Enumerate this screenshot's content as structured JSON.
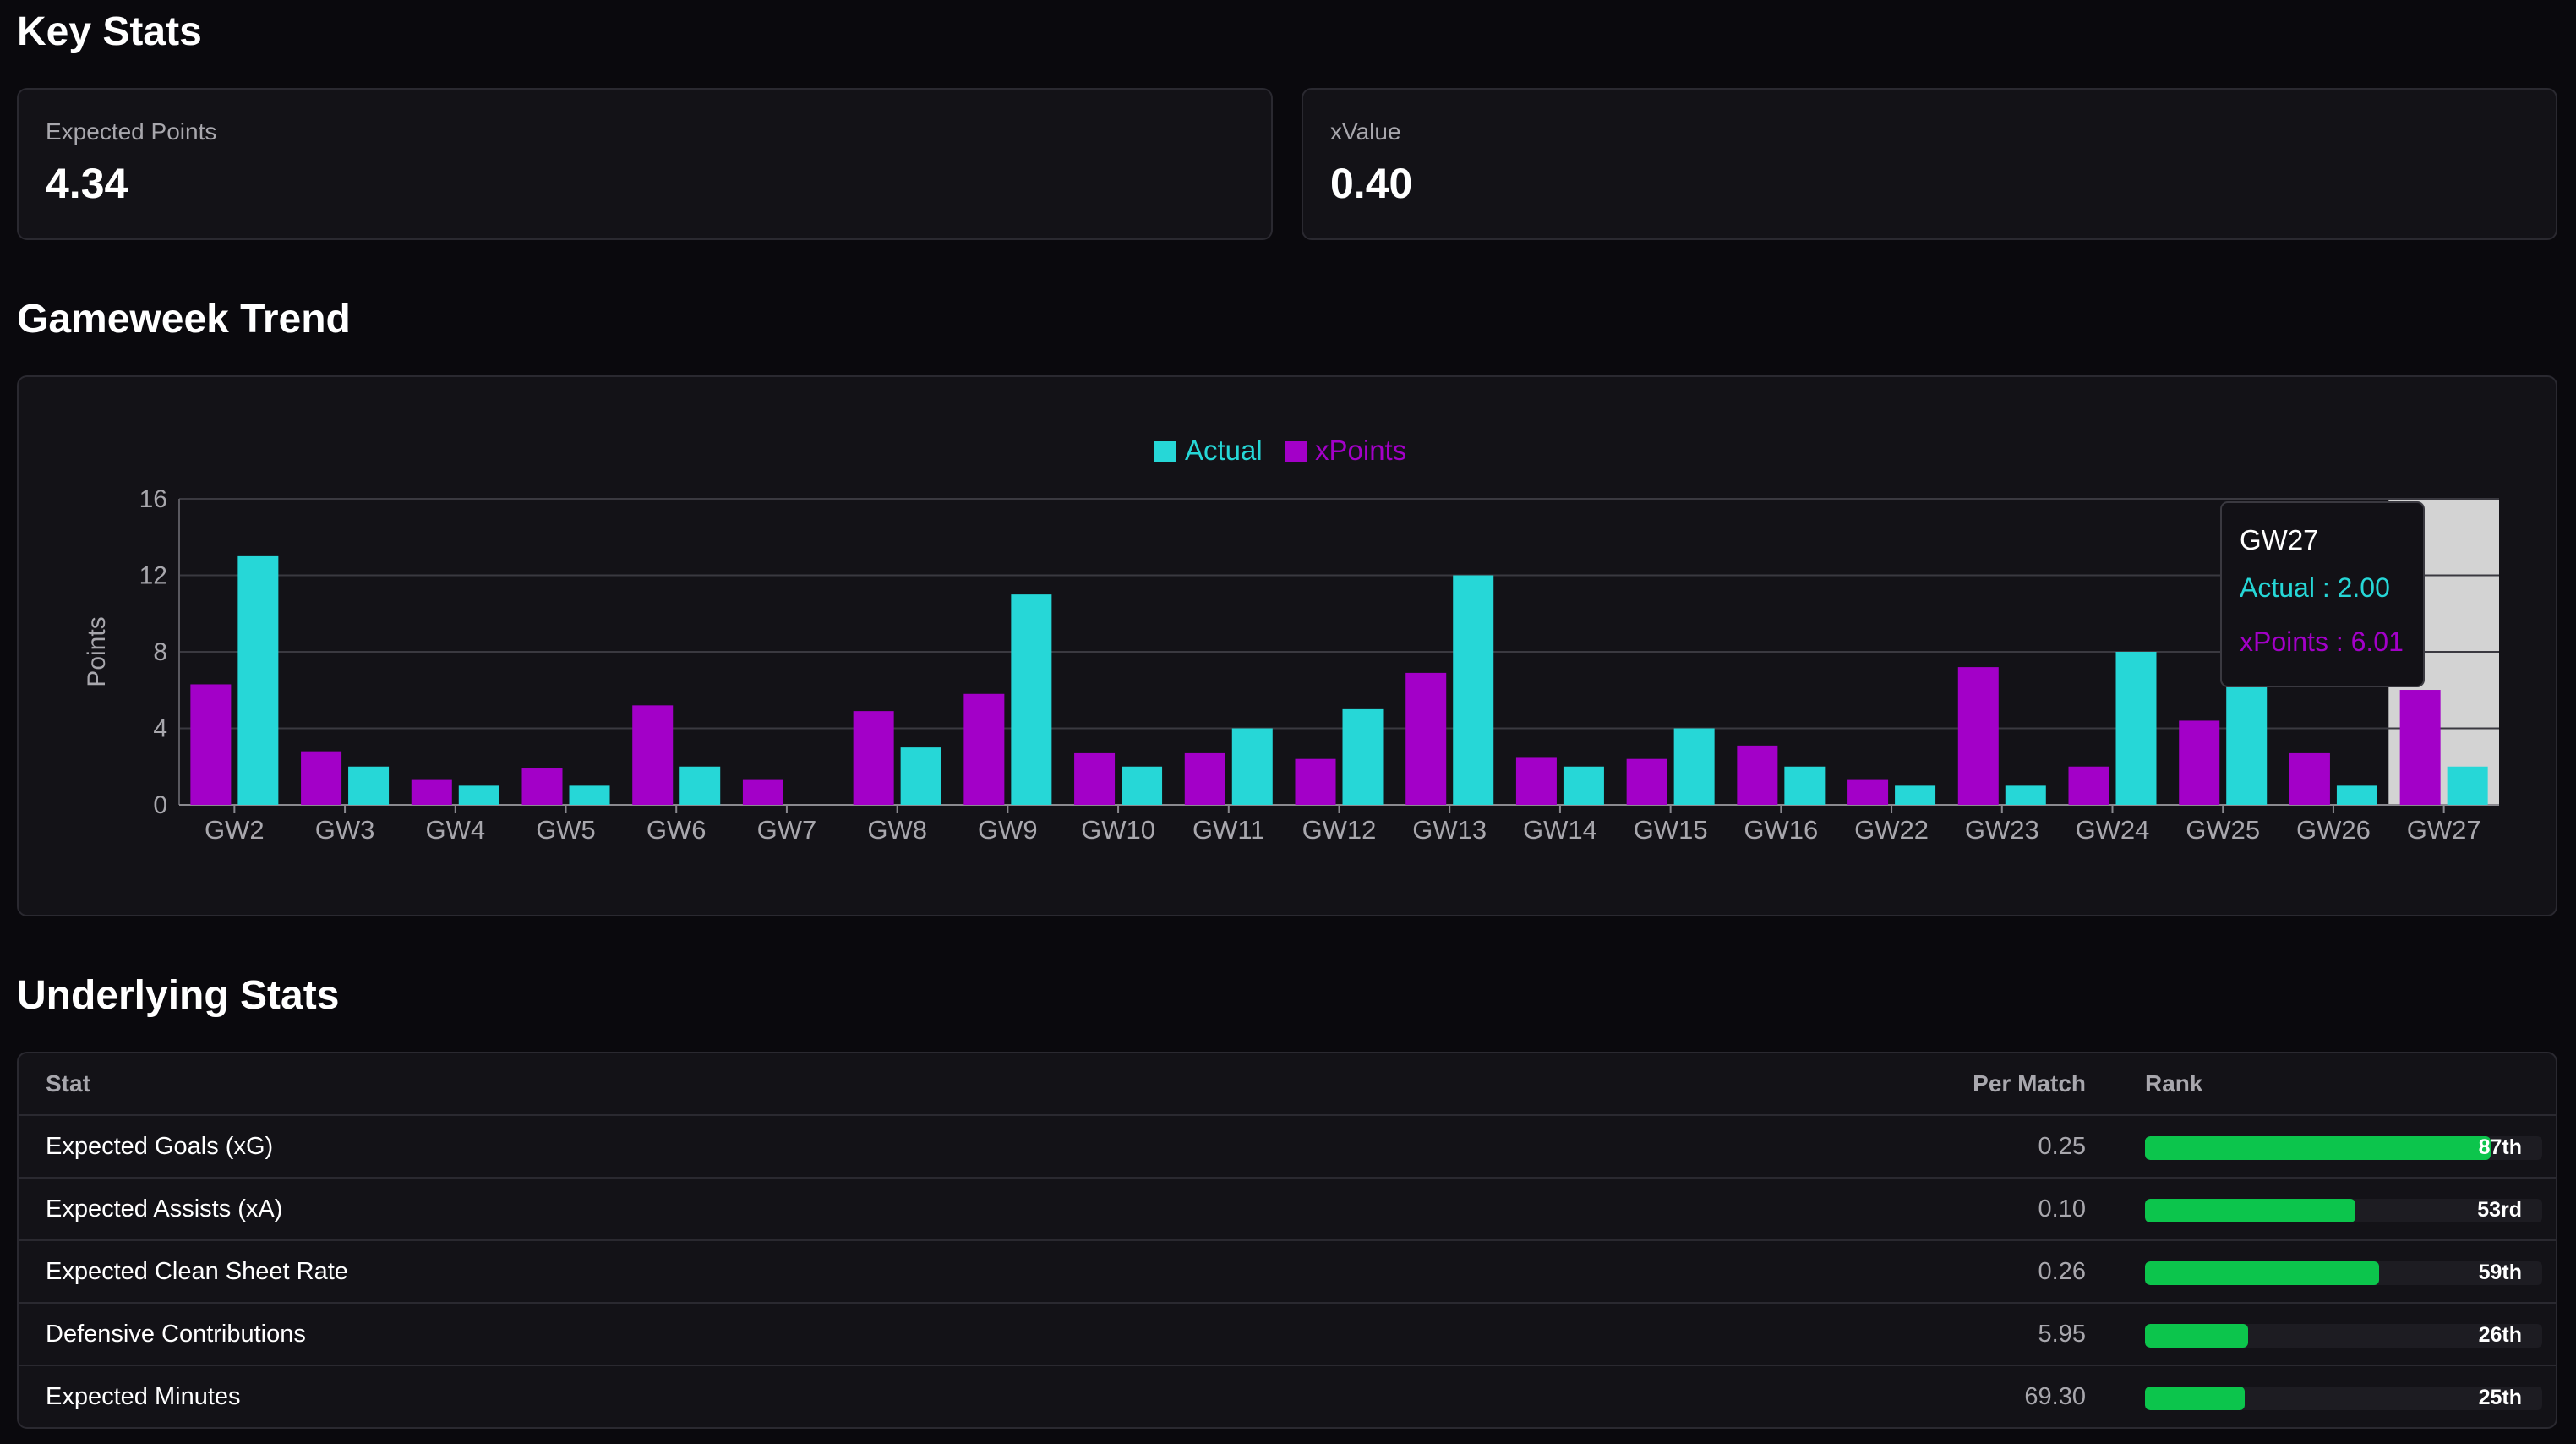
{
  "key_stats": {
    "title": "Key Stats",
    "cards": [
      {
        "label": "Expected Points",
        "value": "4.34"
      },
      {
        "label": "xValue",
        "value": "0.40"
      }
    ]
  },
  "trend": {
    "title": "Gameweek Trend"
  },
  "colors": {
    "actual": "#26d7d7",
    "xpoints": "#a300c8",
    "rank_fill": "#0cc54c",
    "highlight": "#d3d3d3"
  },
  "chart_data": {
    "type": "bar",
    "ylabel": "Points",
    "xlabel": "",
    "ylim": [
      0,
      16
    ],
    "yticks": [
      0,
      4,
      8,
      12,
      16
    ],
    "grid": true,
    "legend_position": "top-center",
    "categories": [
      "GW2",
      "GW3",
      "GW4",
      "GW5",
      "GW6",
      "GW7",
      "GW8",
      "GW9",
      "GW10",
      "GW11",
      "GW12",
      "GW13",
      "GW14",
      "GW15",
      "GW16",
      "GW22",
      "GW23",
      "GW24",
      "GW25",
      "GW26",
      "GW27"
    ],
    "series": [
      {
        "name": "xPoints",
        "values": [
          6.3,
          2.8,
          1.3,
          1.9,
          5.2,
          1.3,
          4.9,
          5.8,
          2.7,
          2.7,
          2.4,
          6.9,
          2.5,
          2.4,
          3.1,
          1.3,
          7.2,
          2.0,
          4.4,
          2.7,
          6.01
        ]
      },
      {
        "name": "Actual",
        "values": [
          13,
          2,
          1,
          1,
          2,
          0,
          3,
          11,
          2,
          4,
          5,
          12,
          2,
          4,
          2,
          1,
          1,
          8,
          7,
          1,
          2
        ]
      }
    ],
    "highlighted_category": "GW27",
    "tooltip": {
      "title": "GW27",
      "actual_text": "Actual : 2.00",
      "xpoints_text": "xPoints : 6.01"
    }
  },
  "underlying": {
    "title": "Underlying Stats",
    "headers": {
      "stat": "Stat",
      "per_match": "Per Match",
      "rank": "Rank"
    },
    "rows": [
      {
        "stat": "Expected Goals (xG)",
        "per_match": "0.25",
        "rank": "87th",
        "pct": 87
      },
      {
        "stat": "Expected Assists (xA)",
        "per_match": "0.10",
        "rank": "53rd",
        "pct": 53
      },
      {
        "stat": "Expected Clean Sheet Rate",
        "per_match": "0.26",
        "rank": "59th",
        "pct": 59
      },
      {
        "stat": "Defensive Contributions",
        "per_match": "5.95",
        "rank": "26th",
        "pct": 26
      },
      {
        "stat": "Expected Minutes",
        "per_match": "69.30",
        "rank": "25th",
        "pct": 25
      }
    ]
  }
}
